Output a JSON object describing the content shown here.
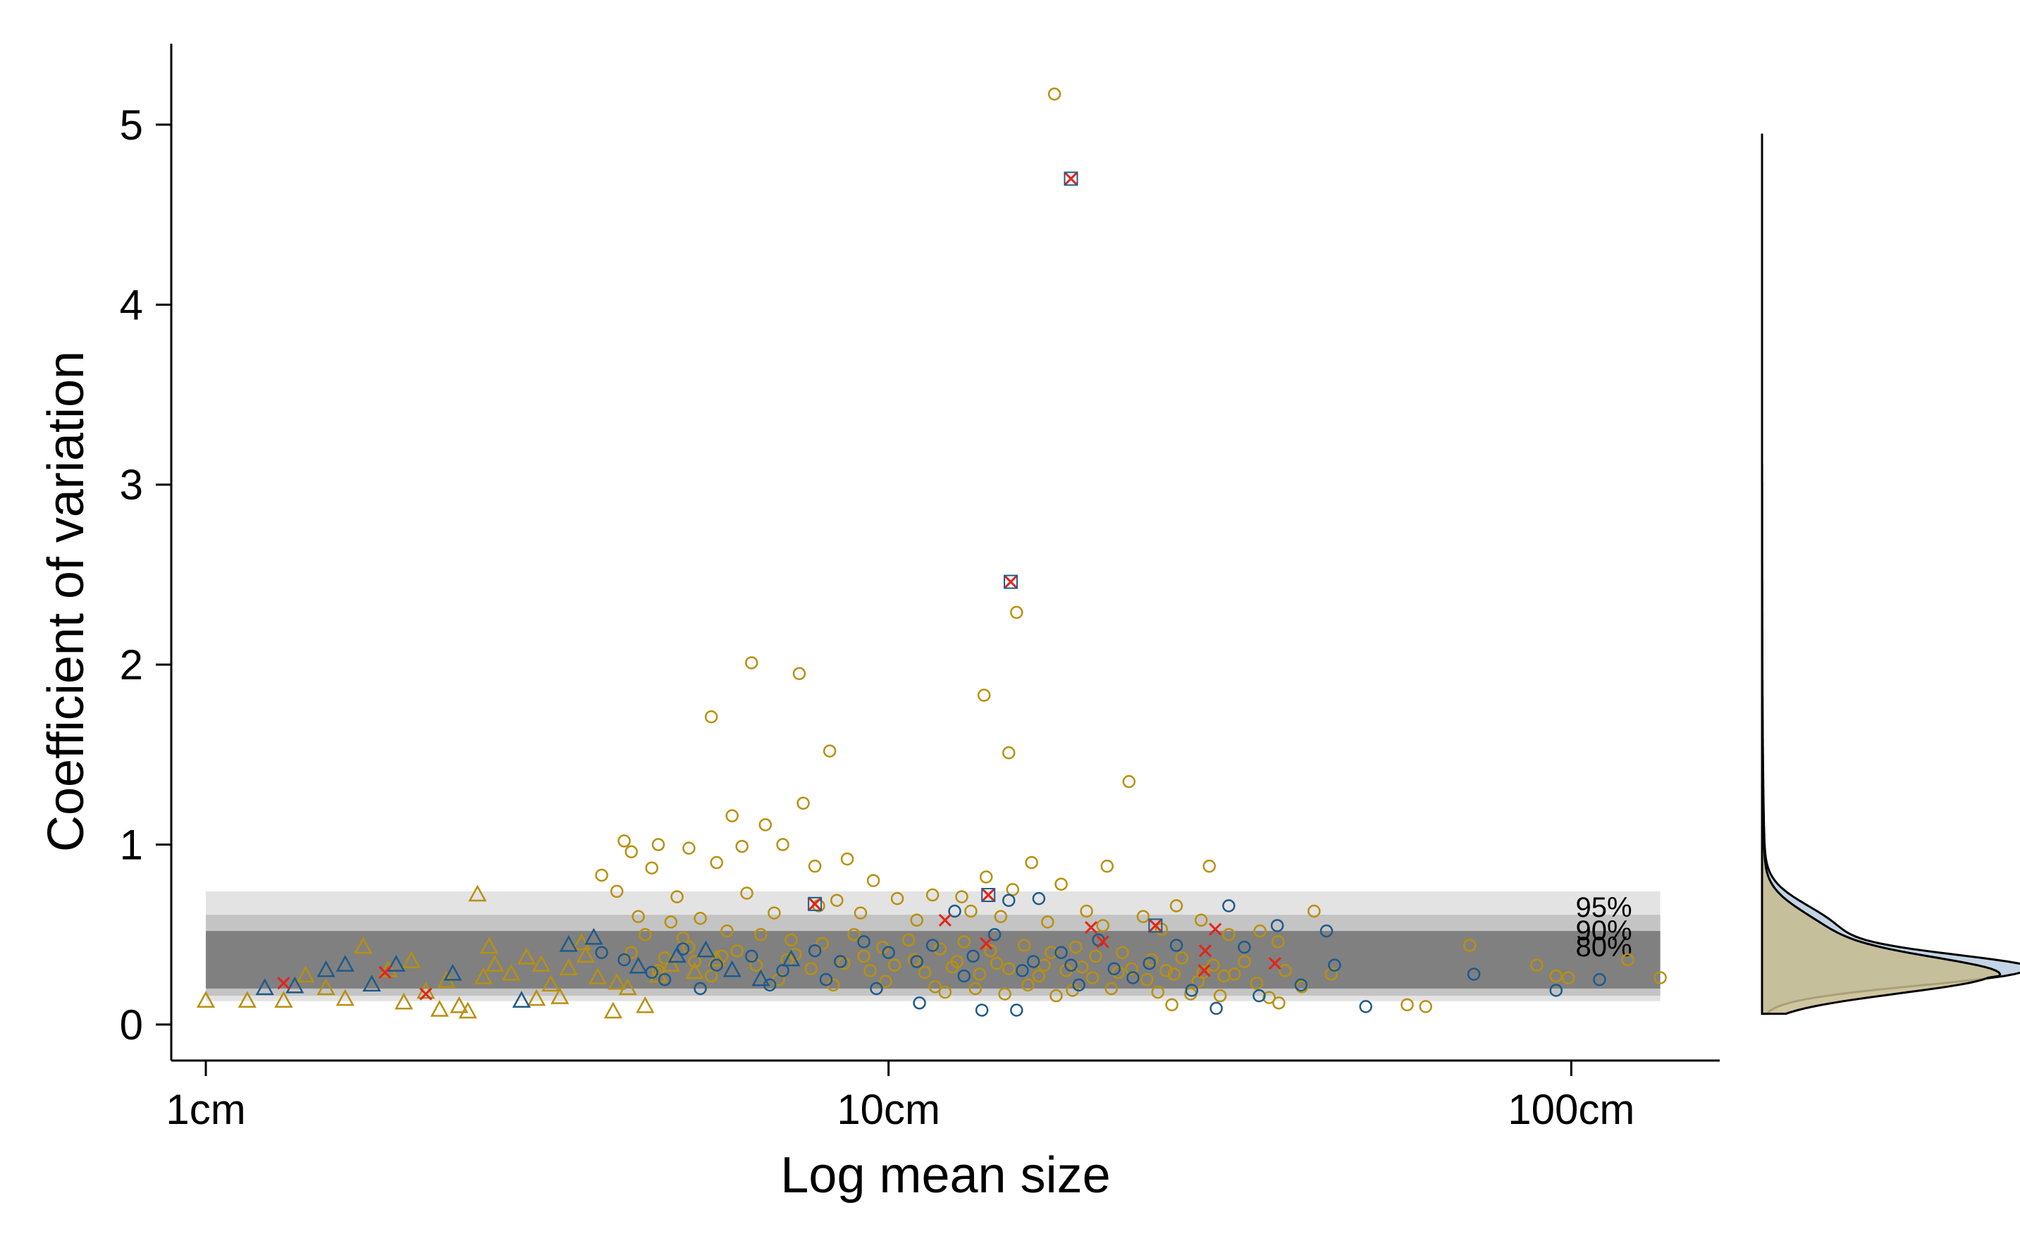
{
  "chart_data": {
    "type": "scatter",
    "title": "",
    "xlabel": "Log mean size",
    "ylabel": "Coefficient of variation",
    "x_scale": "log",
    "xlim": [
      0.89,
      165
    ],
    "ylim": [
      -0.2,
      5.45
    ],
    "x_ticks": [
      {
        "value": 1,
        "label": "1cm"
      },
      {
        "value": 10,
        "label": "10cm"
      },
      {
        "value": 100,
        "label": "100cm"
      }
    ],
    "y_ticks": [
      {
        "value": 0,
        "label": "0"
      },
      {
        "value": 1,
        "label": "1"
      },
      {
        "value": 2,
        "label": "2"
      },
      {
        "value": 3,
        "label": "3"
      },
      {
        "value": 4,
        "label": "4"
      },
      {
        "value": 5,
        "label": "5"
      }
    ],
    "grid": false,
    "legend": "none",
    "colors": {
      "gold": "#B8900F",
      "blue": "#1F5A8A",
      "red": "#E5231A",
      "band95": "#E3E3E3",
      "band90": "#C4C4C4",
      "band80": "#808080",
      "density_blue_fill": "#B9CCE0",
      "density_gold_fill": "#C7BB8E"
    },
    "bands": [
      {
        "label": "95%",
        "y_low": 0.13,
        "y_high": 0.74,
        "x_low": 1,
        "x_high": 135
      },
      {
        "label": "90%",
        "y_low": 0.16,
        "y_high": 0.61,
        "x_low": 1,
        "x_high": 135
      },
      {
        "label": "80%",
        "y_low": 0.2,
        "y_high": 0.52,
        "x_low": 1,
        "x_high": 135
      }
    ],
    "series": [
      {
        "color": "gold",
        "marker": "circle",
        "points": [
          [
            17.5,
            5.17
          ],
          [
            6.3,
            2.01
          ],
          [
            7.4,
            1.95
          ],
          [
            5.5,
            1.71
          ],
          [
            8.2,
            1.52
          ],
          [
            13.8,
            1.83
          ],
          [
            15.4,
            2.29
          ],
          [
            15.0,
            1.51
          ],
          [
            22.5,
            1.35
          ],
          [
            7.5,
            1.23
          ],
          [
            5.9,
            1.16
          ],
          [
            6.6,
            1.11
          ],
          [
            4.1,
            1.02
          ],
          [
            4.6,
            1.0
          ],
          [
            5.1,
            0.98
          ],
          [
            7.0,
            1.0
          ],
          [
            8.7,
            0.92
          ],
          [
            4.2,
            0.96
          ],
          [
            6.1,
            0.99
          ],
          [
            13.9,
            0.82
          ],
          [
            16.2,
            0.9
          ],
          [
            20.9,
            0.88
          ],
          [
            29.5,
            0.88
          ],
          [
            3.8,
            0.83
          ],
          [
            4.5,
            0.87
          ],
          [
            5.6,
            0.9
          ],
          [
            7.8,
            0.88
          ],
          [
            9.5,
            0.8
          ],
          [
            11.6,
            0.72
          ],
          [
            17.9,
            0.78
          ],
          [
            26.4,
            0.66
          ],
          [
            4.0,
            0.74
          ],
          [
            4.9,
            0.71
          ],
          [
            6.2,
            0.73
          ],
          [
            8.4,
            0.69
          ],
          [
            10.3,
            0.7
          ],
          [
            12.8,
            0.71
          ],
          [
            15.2,
            0.75
          ],
          [
            19.5,
            0.63
          ],
          [
            23.6,
            0.6
          ],
          [
            28.7,
            0.58
          ],
          [
            35.0,
            0.52
          ],
          [
            42.0,
            0.63
          ],
          [
            4.3,
            0.6
          ],
          [
            4.8,
            0.57
          ],
          [
            5.3,
            0.59
          ],
          [
            6.8,
            0.62
          ],
          [
            7.9,
            0.66
          ],
          [
            9.1,
            0.62
          ],
          [
            11.0,
            0.58
          ],
          [
            13.2,
            0.63
          ],
          [
            14.6,
            0.6
          ],
          [
            17.1,
            0.57
          ],
          [
            20.6,
            0.55
          ],
          [
            25.1,
            0.53
          ],
          [
            31.5,
            0.5
          ],
          [
            37.2,
            0.46
          ],
          [
            4.4,
            0.5
          ],
          [
            5.0,
            0.48
          ],
          [
            5.8,
            0.52
          ],
          [
            6.5,
            0.5
          ],
          [
            7.2,
            0.47
          ],
          [
            8.0,
            0.45
          ],
          [
            8.9,
            0.5
          ],
          [
            9.8,
            0.43
          ],
          [
            10.7,
            0.47
          ],
          [
            11.9,
            0.42
          ],
          [
            12.9,
            0.46
          ],
          [
            14.1,
            0.41
          ],
          [
            15.8,
            0.44
          ],
          [
            17.3,
            0.4
          ],
          [
            18.8,
            0.43
          ],
          [
            20.1,
            0.38
          ],
          [
            22.0,
            0.4
          ],
          [
            24.3,
            0.36
          ],
          [
            26.9,
            0.37
          ],
          [
            29.9,
            0.33
          ],
          [
            33.2,
            0.35
          ],
          [
            38.1,
            0.3
          ],
          [
            44.5,
            0.28
          ],
          [
            4.2,
            0.4
          ],
          [
            4.7,
            0.37
          ],
          [
            5.2,
            0.35
          ],
          [
            5.7,
            0.38
          ],
          [
            6.4,
            0.33
          ],
          [
            7.1,
            0.36
          ],
          [
            7.7,
            0.31
          ],
          [
            8.6,
            0.34
          ],
          [
            9.4,
            0.3
          ],
          [
            10.2,
            0.33
          ],
          [
            11.3,
            0.29
          ],
          [
            12.4,
            0.32
          ],
          [
            13.6,
            0.28
          ],
          [
            15.0,
            0.31
          ],
          [
            16.6,
            0.27
          ],
          [
            18.2,
            0.3
          ],
          [
            19.9,
            0.26
          ],
          [
            21.7,
            0.29
          ],
          [
            23.9,
            0.25
          ],
          [
            26.2,
            0.28
          ],
          [
            28.4,
            0.24
          ],
          [
            31.0,
            0.27
          ],
          [
            34.6,
            0.23
          ],
          [
            40.3,
            0.21
          ],
          [
            4.6,
            0.3
          ],
          [
            5.5,
            0.27
          ],
          [
            6.9,
            0.25
          ],
          [
            8.3,
            0.22
          ],
          [
            9.9,
            0.24
          ],
          [
            11.7,
            0.21
          ],
          [
            13.4,
            0.2
          ],
          [
            16.0,
            0.22
          ],
          [
            18.6,
            0.19
          ],
          [
            21.2,
            0.2
          ],
          [
            24.8,
            0.18
          ],
          [
            27.7,
            0.17
          ],
          [
            30.6,
            0.16
          ],
          [
            36.1,
            0.15
          ],
          [
            12.1,
            0.18
          ],
          [
            14.8,
            0.17
          ],
          [
            17.6,
            0.16
          ],
          [
            26.0,
            0.11
          ],
          [
            37.3,
            0.12
          ],
          [
            57.5,
            0.11
          ],
          [
            61.2,
            0.1
          ],
          [
            71.0,
            0.44
          ],
          [
            95.0,
            0.27
          ],
          [
            99.0,
            0.26
          ],
          [
            121.0,
            0.36
          ],
          [
            135.0,
            0.26
          ],
          [
            89.0,
            0.33
          ],
          [
            5.1,
            0.43
          ],
          [
            6.0,
            0.41
          ],
          [
            7.3,
            0.39
          ],
          [
            9.2,
            0.38
          ],
          [
            10.9,
            0.36
          ],
          [
            12.6,
            0.35
          ],
          [
            14.4,
            0.34
          ],
          [
            16.9,
            0.33
          ],
          [
            19.2,
            0.32
          ],
          [
            22.7,
            0.31
          ],
          [
            25.5,
            0.3
          ],
          [
            28.9,
            0.29
          ],
          [
            32.1,
            0.28
          ]
        ]
      },
      {
        "color": "gold",
        "marker": "triangle",
        "points": [
          [
            1.0,
            0.13
          ],
          [
            1.15,
            0.13
          ],
          [
            1.3,
            0.13
          ],
          [
            1.5,
            0.2
          ],
          [
            1.6,
            0.14
          ],
          [
            1.75,
            0.22
          ],
          [
            1.85,
            0.3
          ],
          [
            1.95,
            0.12
          ],
          [
            2.1,
            0.18
          ],
          [
            2.25,
            0.24
          ],
          [
            2.35,
            0.1
          ],
          [
            2.5,
            0.72
          ],
          [
            2.55,
            0.26
          ],
          [
            2.65,
            0.33
          ],
          [
            2.8,
            0.28
          ],
          [
            2.95,
            0.37
          ],
          [
            3.05,
            0.14
          ],
          [
            3.2,
            0.22
          ],
          [
            3.4,
            0.31
          ],
          [
            3.55,
            0.45
          ],
          [
            3.75,
            0.26
          ],
          [
            3.95,
            0.07
          ],
          [
            4.15,
            0.2
          ],
          [
            4.4,
            0.1
          ],
          [
            4.6,
            0.27
          ],
          [
            1.4,
            0.27
          ],
          [
            1.7,
            0.43
          ],
          [
            2.2,
            0.08
          ],
          [
            2.0,
            0.35
          ],
          [
            2.42,
            0.07
          ],
          [
            2.6,
            0.43
          ],
          [
            3.1,
            0.33
          ],
          [
            3.3,
            0.15
          ],
          [
            3.6,
            0.38
          ],
          [
            4.0,
            0.23
          ],
          [
            4.8,
            0.33
          ],
          [
            5.2,
            0.29
          ],
          [
            5.6,
            0.36
          ]
        ]
      },
      {
        "color": "blue",
        "marker": "circle",
        "points": [
          [
            31.5,
            0.66
          ],
          [
            15.0,
            0.69
          ],
          [
            16.6,
            0.7
          ],
          [
            12.5,
            0.63
          ],
          [
            37.1,
            0.55
          ],
          [
            43.8,
            0.52
          ],
          [
            33.2,
            0.43
          ],
          [
            45.0,
            0.33
          ],
          [
            50.0,
            0.1
          ],
          [
            72.0,
            0.28
          ],
          [
            95.0,
            0.19
          ],
          [
            110.0,
            0.25
          ],
          [
            26.4,
            0.44
          ],
          [
            20.3,
            0.47
          ],
          [
            17.9,
            0.4
          ],
          [
            14.3,
            0.5
          ],
          [
            11.6,
            0.44
          ],
          [
            10.0,
            0.4
          ],
          [
            9.2,
            0.46
          ],
          [
            8.5,
            0.35
          ],
          [
            7.8,
            0.41
          ],
          [
            7.0,
            0.3
          ],
          [
            6.3,
            0.38
          ],
          [
            5.6,
            0.33
          ],
          [
            5.0,
            0.42
          ],
          [
            4.5,
            0.29
          ],
          [
            4.1,
            0.36
          ],
          [
            3.8,
            0.4
          ],
          [
            12.9,
            0.27
          ],
          [
            15.7,
            0.3
          ],
          [
            19.0,
            0.22
          ],
          [
            22.8,
            0.26
          ],
          [
            27.8,
            0.19
          ],
          [
            34.9,
            0.16
          ],
          [
            40.2,
            0.22
          ],
          [
            13.7,
            0.08
          ],
          [
            15.4,
            0.08
          ],
          [
            11.1,
            0.12
          ],
          [
            30.2,
            0.09
          ],
          [
            9.6,
            0.2
          ],
          [
            8.1,
            0.25
          ],
          [
            6.7,
            0.22
          ],
          [
            5.3,
            0.2
          ],
          [
            4.7,
            0.25
          ],
          [
            11.0,
            0.35
          ],
          [
            13.3,
            0.38
          ],
          [
            16.3,
            0.35
          ],
          [
            18.5,
            0.33
          ],
          [
            21.4,
            0.31
          ],
          [
            24.1,
            0.34
          ]
        ]
      },
      {
        "color": "blue",
        "marker": "triangle",
        "points": [
          [
            1.22,
            0.2
          ],
          [
            1.35,
            0.21
          ],
          [
            1.5,
            0.3
          ],
          [
            1.6,
            0.33
          ],
          [
            1.75,
            0.22
          ],
          [
            1.9,
            0.33
          ],
          [
            2.3,
            0.28
          ],
          [
            2.9,
            0.13
          ],
          [
            3.4,
            0.44
          ],
          [
            3.7,
            0.48
          ],
          [
            4.3,
            0.32
          ],
          [
            4.9,
            0.38
          ],
          [
            5.4,
            0.41
          ],
          [
            5.9,
            0.3
          ],
          [
            6.5,
            0.25
          ],
          [
            7.2,
            0.36
          ]
        ]
      },
      {
        "color": "red",
        "marker": "cross",
        "points": [
          [
            18.5,
            4.7
          ],
          [
            15.1,
            2.46
          ],
          [
            14.0,
            0.72
          ],
          [
            7.8,
            0.67
          ],
          [
            12.1,
            0.58
          ],
          [
            19.8,
            0.54
          ],
          [
            24.6,
            0.55
          ],
          [
            30.1,
            0.53
          ],
          [
            29.1,
            0.41
          ],
          [
            20.6,
            0.46
          ],
          [
            13.9,
            0.45
          ],
          [
            36.8,
            0.34
          ],
          [
            29.0,
            0.3
          ],
          [
            1.3,
            0.23
          ],
          [
            1.83,
            0.29
          ],
          [
            2.1,
            0.17
          ]
        ]
      }
    ],
    "highlighted_points": [
      [
        18.5,
        4.7
      ],
      [
        15.1,
        2.46
      ],
      [
        14.0,
        0.72
      ],
      [
        7.8,
        0.67
      ],
      [
        24.6,
        0.55
      ]
    ],
    "side_density": {
      "orientation": "vertical",
      "series": [
        {
          "color": "density_blue_fill",
          "peak_y": 0.3,
          "peak_density": 1.0
        },
        {
          "color": "density_gold_fill",
          "peak_y": 0.27,
          "peak_density": 0.87
        }
      ]
    }
  }
}
